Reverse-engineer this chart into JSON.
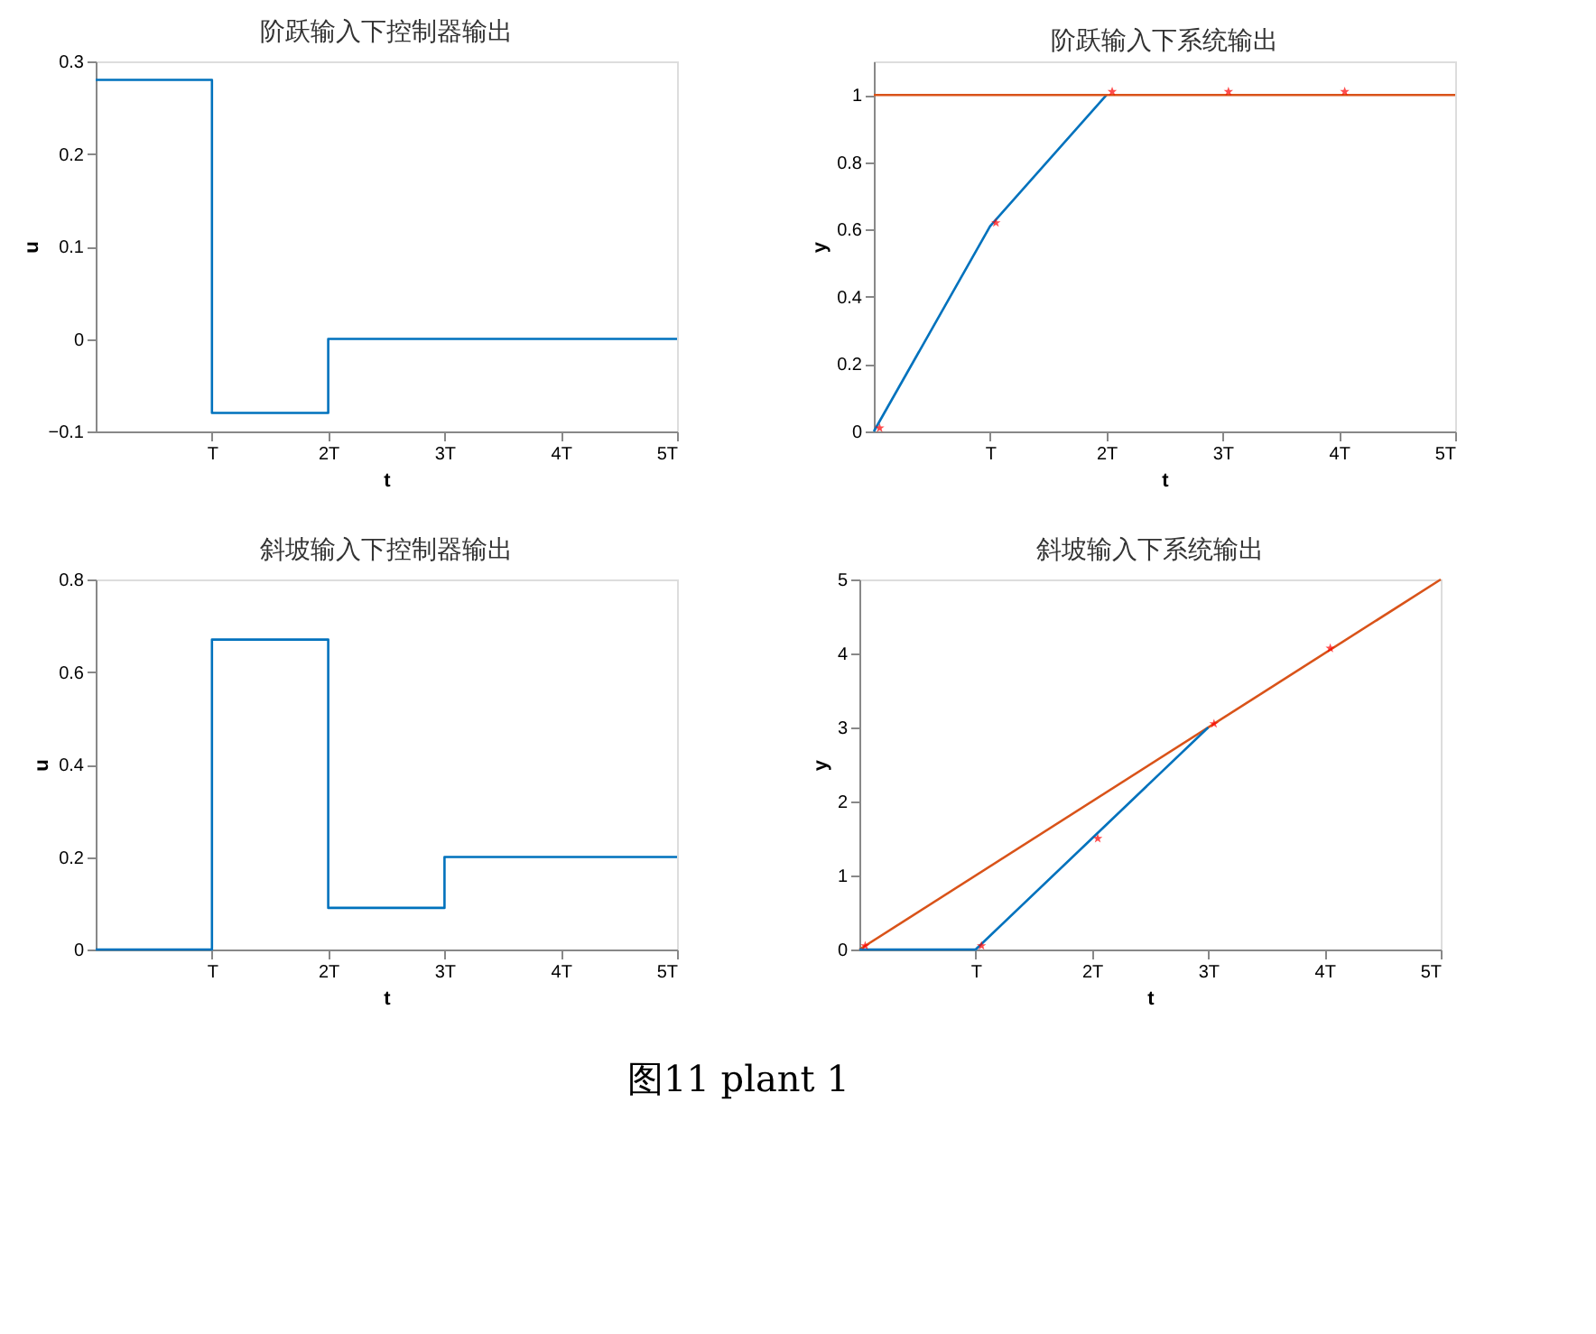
{
  "chart_data": [
    {
      "type": "step",
      "title": "阶跃输入下控制器输出",
      "xlabel": "t",
      "ylabel": "u",
      "xlim": [
        0,
        5
      ],
      "xticks": [
        {
          "value": 1,
          "label": "T"
        },
        {
          "value": 2,
          "label": "2T"
        },
        {
          "value": 3,
          "label": "3T"
        },
        {
          "value": 4,
          "label": "4T"
        },
        {
          "value": 5,
          "label": "5T"
        }
      ],
      "ylim": [
        -0.1,
        0.3
      ],
      "yticks": [
        -0.1,
        0,
        0.1,
        0.2,
        0.3
      ],
      "series": [
        {
          "color": "#0072bd",
          "x": [
            0,
            1,
            2,
            5
          ],
          "values": [
            0.28,
            -0.08,
            0,
            0
          ]
        }
      ]
    },
    {
      "type": "line",
      "title": "阶跃输入下系统输出",
      "xlabel": "t",
      "ylabel": "y",
      "xlim": [
        0,
        5
      ],
      "xticks": [
        {
          "value": 1,
          "label": "T"
        },
        {
          "value": 2,
          "label": "2T"
        },
        {
          "value": 3,
          "label": "3T"
        },
        {
          "value": 4,
          "label": "4T"
        },
        {
          "value": 5,
          "label": "5T"
        }
      ],
      "ylim": [
        0,
        1.1
      ],
      "yticks": [
        0,
        0.2,
        0.4,
        0.6,
        0.8,
        1
      ],
      "series": [
        {
          "color": "#0072bd",
          "x": [
            0,
            1,
            2
          ],
          "values": [
            0,
            0.61,
            1.0
          ]
        },
        {
          "color": "#d95319",
          "x": [
            0,
            5
          ],
          "values": [
            1,
            1
          ]
        },
        {
          "type": "scatter",
          "marker": "star",
          "color": "#ff0000",
          "x": [
            0.05,
            1.05,
            2.05,
            3.05,
            4.05
          ],
          "values": [
            0.01,
            0.62,
            1.01,
            1.01,
            1.01
          ]
        }
      ]
    },
    {
      "type": "step",
      "title": "斜坡输入下控制器输出",
      "xlabel": "t",
      "ylabel": "u",
      "xlim": [
        0,
        5
      ],
      "xticks": [
        {
          "value": 1,
          "label": "T"
        },
        {
          "value": 2,
          "label": "2T"
        },
        {
          "value": 3,
          "label": "3T"
        },
        {
          "value": 4,
          "label": "4T"
        },
        {
          "value": 5,
          "label": "5T"
        }
      ],
      "ylim": [
        0,
        0.8
      ],
      "yticks": [
        0,
        0.2,
        0.4,
        0.6,
        0.8
      ],
      "series": [
        {
          "color": "#0072bd",
          "x": [
            0,
            1,
            2,
            3,
            5
          ],
          "values": [
            0,
            0.67,
            0.09,
            0.2,
            0.2
          ]
        }
      ]
    },
    {
      "type": "line",
      "title": "斜坡输入下系统输出",
      "xlabel": "t",
      "ylabel": "y",
      "xlim": [
        0,
        5
      ],
      "xticks": [
        {
          "value": 1,
          "label": "T"
        },
        {
          "value": 2,
          "label": "2T"
        },
        {
          "value": 3,
          "label": "3T"
        },
        {
          "value": 4,
          "label": "4T"
        },
        {
          "value": 5,
          "label": "5T"
        }
      ],
      "ylim": [
        0,
        5
      ],
      "yticks": [
        0,
        1,
        2,
        3,
        4,
        5
      ],
      "annotations": [
        "图11 plant 1"
      ],
      "series": [
        {
          "color": "#d95319",
          "x": [
            0,
            5
          ],
          "values": [
            0,
            5
          ]
        },
        {
          "color": "#0072bd",
          "x": [
            0,
            1,
            2,
            3
          ],
          "values": [
            0,
            0,
            1.5,
            3
          ]
        },
        {
          "type": "scatter",
          "marker": "star",
          "color": "#ff0000",
          "x": [
            0.05,
            1.05,
            2.05,
            3.05,
            4.05
          ],
          "values": [
            0.05,
            0.05,
            1.5,
            3.05,
            4.07
          ]
        }
      ]
    }
  ]
}
